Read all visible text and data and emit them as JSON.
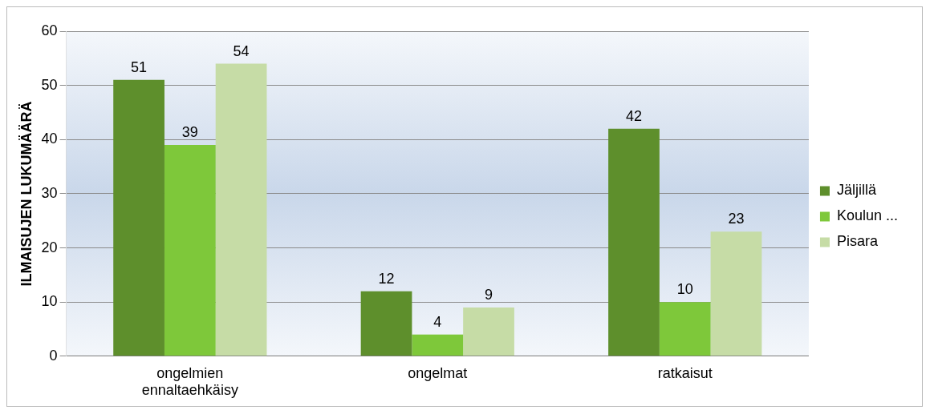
{
  "chart_data": {
    "type": "bar",
    "ylabel": "ILMAISUJEN LUKUMÄÄRÄ",
    "categories": [
      "ongelmien ennaltaehkäisy",
      "ongelmat",
      "ratkaisut"
    ],
    "series": [
      {
        "name": "Jäljillä",
        "color": "#5e8f2c",
        "values": [
          51,
          12,
          42
        ]
      },
      {
        "name": "Koulun ...",
        "color": "#7ec83a",
        "values": [
          39,
          4,
          10
        ]
      },
      {
        "name": "Pisara",
        "color": "#c6dca6",
        "values": [
          54,
          9,
          23
        ]
      }
    ],
    "ylim": [
      0,
      60
    ],
    "yticks": [
      0,
      10,
      20,
      30,
      40,
      50,
      60
    ],
    "grid": "y",
    "legend": "right",
    "data_labels": true
  }
}
